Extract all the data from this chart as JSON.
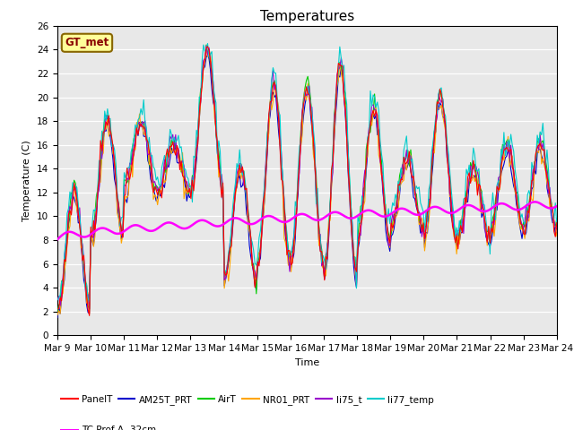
{
  "title": "Temperatures",
  "xlabel": "Time",
  "ylabel": "Temperature (C)",
  "ylim": [
    0,
    26
  ],
  "x_tick_labels": [
    "Mar 9",
    "Mar 10",
    "Mar 11",
    "Mar 12",
    "Mar 13",
    "Mar 14",
    "Mar 15",
    "Mar 16",
    "Mar 17",
    "Mar 18",
    "Mar 19",
    "Mar 20",
    "Mar 21",
    "Mar 22",
    "Mar 23",
    "Mar 24"
  ],
  "series_colors": {
    "PanelT": "#ff0000",
    "AM25T_PRT": "#0000cc",
    "AirT": "#00cc00",
    "NR01_PRT": "#ffa500",
    "li75_t": "#9900cc",
    "li77_temp": "#00cccc",
    "TC_Prof": "#ff00ff"
  },
  "annotation_text": "GT_met",
  "annotation_box_color": "#ffff99",
  "annotation_border_color": "#886600",
  "bg_color": "#e8e8e8",
  "title_fontsize": 11,
  "axis_fontsize": 8,
  "tick_fontsize": 7.5,
  "figsize": [
    6.4,
    4.8
  ],
  "dpi": 100
}
